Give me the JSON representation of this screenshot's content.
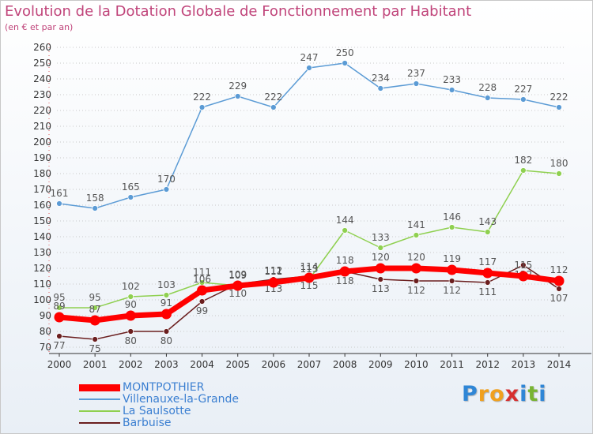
{
  "title": "Evolution de la Dotation Globale de Fonctionnement par Habitant",
  "subtitle": "(en € et par an)",
  "brand": {
    "letters": [
      "P",
      "r",
      "o",
      "x",
      "i",
      "t",
      "i"
    ],
    "colors": [
      "#2f86d6",
      "#f0a01e",
      "#f0a01e",
      "#d62f2f",
      "#2f86d6",
      "#78b432",
      "#2f86d6"
    ]
  },
  "chart_data": {
    "type": "line",
    "title": "Evolution de la Dotation Globale de Fonctionnement par Habitant",
    "subtitle": "(en € et par an)",
    "xlabel": "",
    "ylabel": "",
    "x": [
      "2000",
      "2001",
      "2002",
      "2003",
      "2004",
      "2005",
      "2006",
      "2007",
      "2008",
      "2009",
      "2010",
      "2011",
      "2012",
      "2013",
      "2014"
    ],
    "ylim": [
      70,
      260
    ],
    "yticks": [
      70,
      80,
      90,
      100,
      110,
      120,
      130,
      140,
      150,
      160,
      170,
      180,
      190,
      200,
      210,
      220,
      230,
      240,
      250,
      260
    ],
    "grid": "horizontal dotted",
    "legend_position": "bottom-left",
    "series": [
      {
        "name": "MONTPOTHIER",
        "color": "#ff0000",
        "values": [
          89,
          87,
          90,
          91,
          106,
          109,
          111,
          114,
          118,
          120,
          120,
          119,
          117,
          115,
          112
        ],
        "labels": [
          "89",
          "87",
          "90",
          "91",
          "106",
          "109",
          "111",
          "114",
          "118",
          "120",
          "120",
          "119",
          "117",
          "115",
          "112"
        ]
      },
      {
        "name": "Villenauxe-la-Grande",
        "color": "#5b9bd5",
        "values": [
          161,
          158,
          165,
          170,
          222,
          229,
          222,
          247,
          250,
          234,
          237,
          233,
          228,
          227,
          222
        ],
        "labels": [
          "161",
          "158",
          "165",
          "170",
          "222",
          "229",
          "222",
          "247",
          "250",
          "234",
          "237",
          "233",
          "228",
          "227",
          "222"
        ]
      },
      {
        "name": "La Saulsotte",
        "color": "#8fd050",
        "values": [
          95,
          95,
          102,
          103,
          111,
          109,
          112,
          113,
          144,
          133,
          141,
          146,
          143,
          182,
          180
        ],
        "labels": [
          "95",
          "95",
          "102",
          "103",
          "111",
          "109",
          "112",
          "113",
          "144",
          "133",
          "141",
          "146",
          "143",
          "182",
          "180"
        ]
      },
      {
        "name": "Barbuise",
        "color": "#6b1f1f",
        "values": [
          77,
          75,
          80,
          80,
          99,
          110,
          113,
          115,
          118,
          113,
          112,
          112,
          111,
          122,
          107
        ],
        "labels": [
          "77",
          "75",
          "80",
          "80",
          "99",
          "110",
          "113",
          "115",
          "118",
          "113",
          "112",
          "112",
          "111",
          "122",
          "107"
        ]
      }
    ]
  }
}
